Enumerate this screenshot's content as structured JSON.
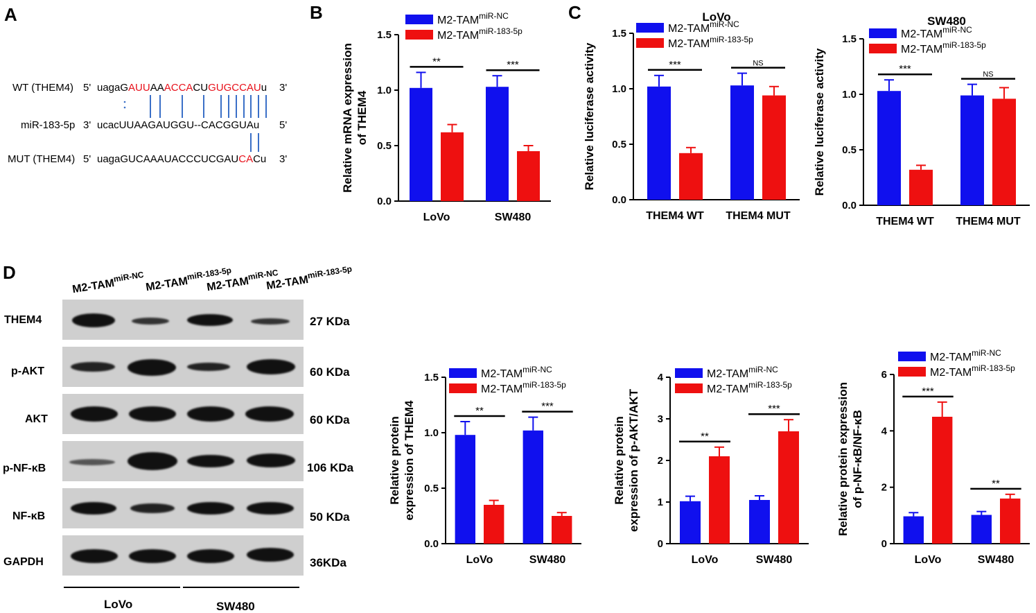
{
  "panels": {
    "A": "A",
    "B": "B",
    "C": "C",
    "D": "D"
  },
  "panel_a": {
    "wt": {
      "label": "WT (THEM4)",
      "p5": "5'",
      "seq": [
        {
          "t": "uaga",
          "red": false
        },
        {
          "t": "G",
          "red": false
        },
        {
          "t": "AUU",
          "red": true
        },
        {
          "t": "AA",
          "red": false
        },
        {
          "t": "ACCA",
          "red": true
        },
        {
          "t": "CU",
          "red": false
        },
        {
          "t": "GUGCCAU",
          "red": true
        },
        {
          "t": "u",
          "red": false
        }
      ],
      "p3": "3'"
    },
    "mir": {
      "label": "miR-183-5p",
      "p3": "3'",
      "seq": "ucacUUAAGAUGGU--CACGGUAu",
      "p5": "5'"
    },
    "mut": {
      "label": "MUT (THEM4)",
      "p5": "5'",
      "seq": [
        {
          "t": "uagaGUCAAAUACCCUCGAU",
          "red": false
        },
        {
          "t": "CA",
          "red": true
        },
        {
          "t": "Cu",
          "red": false
        }
      ],
      "p3": "3'"
    }
  },
  "western": {
    "header": [
      {
        "base": "M2-TAM",
        "sup": "miR-NC"
      },
      {
        "base": "M2-TAM",
        "sup": "miR-183-5p"
      },
      {
        "base": "M2-TAM",
        "sup": "miR-NC"
      },
      {
        "base": "M2-TAM",
        "sup": "miR-183-5p"
      }
    ],
    "rows": [
      {
        "label": "THEM4",
        "size": "27 KDa"
      },
      {
        "label": "p-AKT",
        "size": "60 KDa"
      },
      {
        "label": "AKT",
        "size": "60 KDa"
      },
      {
        "label": "p-NF-κB",
        "size": "106 KDa"
      },
      {
        "label": "NF-κB",
        "size": "50 KDa"
      },
      {
        "label": "GAPDH",
        "size": "36KDa"
      }
    ],
    "cell_lines": [
      "LoVo",
      "SW480"
    ]
  },
  "colors": {
    "nc": "#1010ee",
    "mir": "#ee1010",
    "axis": "#000000"
  },
  "chart_data": [
    {
      "id": "B",
      "type": "bar",
      "title": "",
      "ylabel": [
        "Relative mRNA expression",
        "of THEM4"
      ],
      "categories": [
        "LoVo",
        "SW480"
      ],
      "ylim": [
        0,
        1.5
      ],
      "yticks": [
        "0.0",
        "0.5",
        "1.0",
        "1.5"
      ],
      "series": [
        {
          "name_base": "M2-TAM",
          "name_sup": "miR-NC",
          "values": [
            1.02,
            1.03
          ],
          "errors": [
            0.14,
            0.1
          ]
        },
        {
          "name_base": "M2-TAM",
          "name_sup": "miR-183-5p",
          "values": [
            0.62,
            0.45
          ],
          "errors": [
            0.07,
            0.05
          ]
        }
      ],
      "significance": [
        "**",
        "***"
      ],
      "legend": "top-left"
    },
    {
      "id": "C1",
      "type": "bar",
      "title": "LoVo",
      "ylabel": [
        "Relative luciferase activity"
      ],
      "categories": [
        "THEM4 WT",
        "THEM4 MUT"
      ],
      "ylim": [
        0,
        1.5
      ],
      "yticks": [
        "0.0",
        "0.5",
        "1.0",
        "1.5"
      ],
      "series": [
        {
          "name_base": "M2-TAM",
          "name_sup": "miR-NC",
          "values": [
            1.02,
            1.03
          ],
          "errors": [
            0.1,
            0.11
          ]
        },
        {
          "name_base": "M2-TAM",
          "name_sup": "miR-183-5p",
          "values": [
            0.42,
            0.94
          ],
          "errors": [
            0.05,
            0.08
          ]
        }
      ],
      "significance": [
        "***",
        "NS"
      ],
      "legend": "top-left"
    },
    {
      "id": "C2",
      "type": "bar",
      "title": "SW480",
      "ylabel": [
        "Relative luciferase activity"
      ],
      "categories": [
        "THEM4 WT",
        "THEM4 MUT"
      ],
      "ylim": [
        0,
        1.5
      ],
      "yticks": [
        "0.0",
        "0.5",
        "1.0",
        "1.5"
      ],
      "series": [
        {
          "name_base": "M2-TAM",
          "name_sup": "miR-NC",
          "values": [
            1.03,
            0.99
          ],
          "errors": [
            0.1,
            0.1
          ]
        },
        {
          "name_base": "M2-TAM",
          "name_sup": "miR-183-5p",
          "values": [
            0.32,
            0.96
          ],
          "errors": [
            0.04,
            0.1
          ]
        }
      ],
      "significance": [
        "***",
        "NS"
      ],
      "legend": "top-left"
    },
    {
      "id": "D1",
      "type": "bar",
      "title": "",
      "ylabel": [
        "Relative protein",
        "expression of THEM4"
      ],
      "categories": [
        "LoVo",
        "SW480"
      ],
      "ylim": [
        0,
        1.5
      ],
      "yticks": [
        "0.0",
        "0.5",
        "1.0",
        "1.5"
      ],
      "series": [
        {
          "name_base": "M2-TAM",
          "name_sup": "miR-NC",
          "values": [
            0.98,
            1.02
          ],
          "errors": [
            0.12,
            0.12
          ]
        },
        {
          "name_base": "M2-TAM",
          "name_sup": "miR-183-5p",
          "values": [
            0.35,
            0.25
          ],
          "errors": [
            0.04,
            0.03
          ]
        }
      ],
      "significance": [
        "**",
        "***"
      ],
      "legend": "top-left"
    },
    {
      "id": "D2",
      "type": "bar",
      "title": "",
      "ylabel": [
        "Relative protein",
        "expression of p-AKT/AKT"
      ],
      "categories": [
        "LoVo",
        "SW480"
      ],
      "ylim": [
        0,
        4
      ],
      "yticks": [
        "0",
        "1",
        "2",
        "3",
        "4"
      ],
      "series": [
        {
          "name_base": "M2-TAM",
          "name_sup": "miR-NC",
          "values": [
            1.02,
            1.05
          ],
          "errors": [
            0.12,
            0.1
          ]
        },
        {
          "name_base": "M2-TAM",
          "name_sup": "miR-183-5p",
          "values": [
            2.1,
            2.7
          ],
          "errors": [
            0.22,
            0.28
          ]
        }
      ],
      "significance": [
        "**",
        "***"
      ],
      "legend": "top-left"
    },
    {
      "id": "D3",
      "type": "bar",
      "title": "",
      "ylabel": [
        "Relative protein expression",
        "of p-NF-κB/NF-κB"
      ],
      "categories": [
        "LoVo",
        "SW480"
      ],
      "ylim": [
        0,
        6
      ],
      "yticks": [
        "0",
        "2",
        "4",
        "6"
      ],
      "series": [
        {
          "name_base": "M2-TAM",
          "name_sup": "miR-NC",
          "values": [
            0.97,
            1.02
          ],
          "errors": [
            0.13,
            0.12
          ]
        },
        {
          "name_base": "M2-TAM",
          "name_sup": "miR-183-5p",
          "values": [
            4.5,
            1.6
          ],
          "errors": [
            0.52,
            0.15
          ]
        }
      ],
      "significance": [
        "***",
        "**"
      ],
      "legend": "top-left"
    }
  ]
}
